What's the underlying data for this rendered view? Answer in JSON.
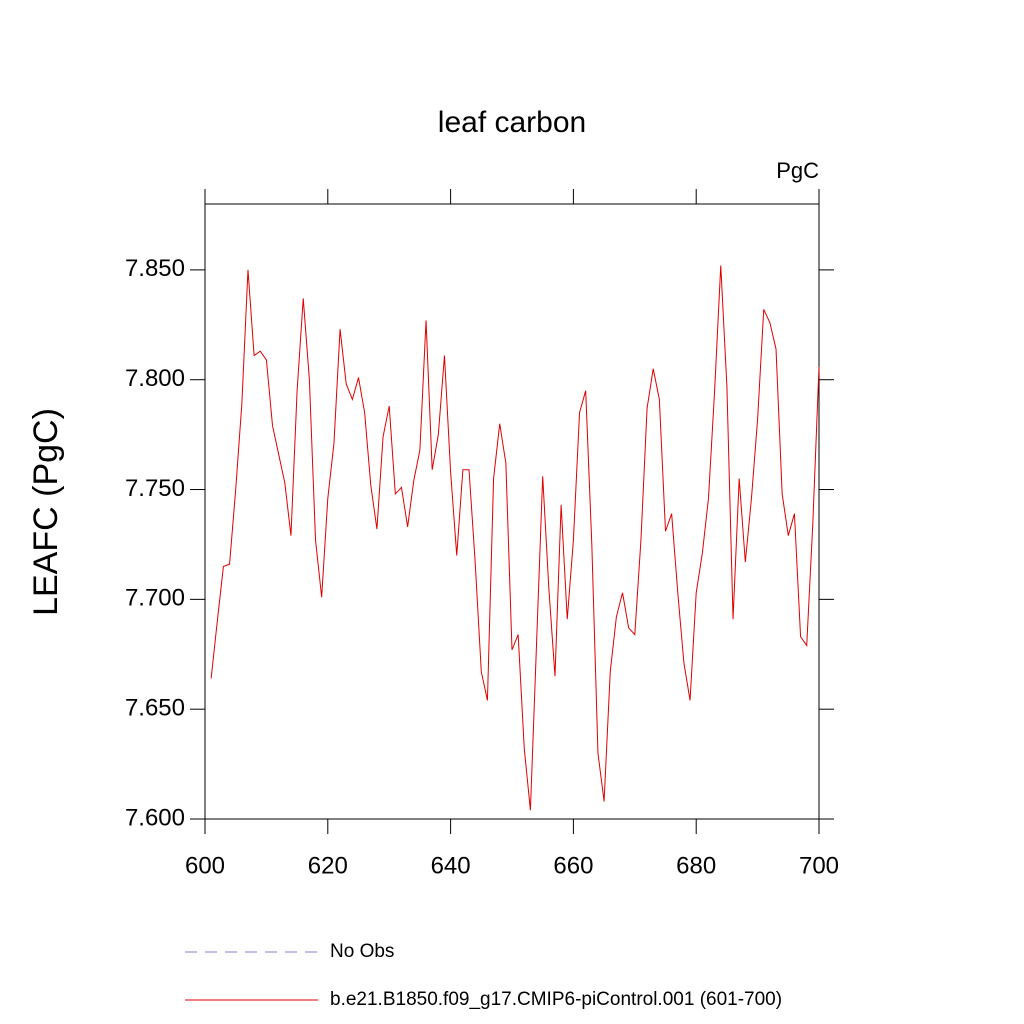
{
  "chart_data": {
    "type": "line",
    "title": "leaf carbon",
    "units_label": "PgC",
    "ylabel": "LEAFC  (PgC)",
    "x": [
      601,
      602,
      603,
      604,
      605,
      606,
      607,
      608,
      609,
      610,
      611,
      612,
      613,
      614,
      615,
      616,
      617,
      618,
      619,
      620,
      621,
      622,
      623,
      624,
      625,
      626,
      627,
      628,
      629,
      630,
      631,
      632,
      633,
      634,
      635,
      636,
      637,
      638,
      639,
      640,
      641,
      642,
      643,
      644,
      645,
      646,
      647,
      648,
      649,
      650,
      651,
      652,
      653,
      654,
      655,
      656,
      657,
      658,
      659,
      660,
      661,
      662,
      663,
      664,
      665,
      666,
      667,
      668,
      669,
      670,
      671,
      672,
      673,
      674,
      675,
      676,
      677,
      678,
      679,
      680,
      681,
      682,
      683,
      684,
      685,
      686,
      687,
      688,
      689,
      690,
      691,
      692,
      693,
      694,
      695,
      696,
      697,
      698,
      699,
      700
    ],
    "series": [
      {
        "name": "No Obs",
        "color": "#8080c8",
        "dashed": true,
        "values": [
          null,
          null,
          null,
          null,
          null,
          null,
          null,
          null,
          null,
          null,
          null,
          null,
          null,
          null,
          null,
          null,
          null,
          null,
          null,
          null,
          null,
          null,
          null,
          null,
          null,
          null,
          null,
          null,
          null,
          null,
          null,
          null,
          null,
          null,
          null,
          null,
          null,
          null,
          null,
          null,
          null,
          null,
          null,
          null,
          null,
          null,
          null,
          null,
          null,
          null,
          null,
          null,
          null,
          null,
          null,
          null,
          null,
          null,
          null,
          null,
          null,
          null,
          null,
          null,
          null,
          null,
          null,
          null,
          null,
          null,
          null,
          null,
          null,
          null,
          null,
          null,
          null,
          null,
          null,
          null,
          null,
          null,
          null,
          null,
          null,
          null,
          null,
          null,
          null,
          null,
          null,
          null,
          null,
          null,
          null,
          null,
          null,
          null,
          null,
          null
        ]
      },
      {
        "name": "b.e21.B1850.f09_g17.CMIP6-piControl.001 (601-700)",
        "color": "#e00000",
        "dashed": false,
        "values": [
          7.664,
          7.69,
          7.715,
          7.716,
          7.75,
          7.789,
          7.85,
          7.811,
          7.813,
          7.809,
          7.779,
          7.766,
          7.753,
          7.729,
          7.795,
          7.837,
          7.8,
          7.727,
          7.701,
          7.746,
          7.771,
          7.823,
          7.798,
          7.791,
          7.801,
          7.785,
          7.752,
          7.732,
          7.774,
          7.788,
          7.748,
          7.751,
          7.733,
          7.754,
          7.768,
          7.827,
          7.759,
          7.775,
          7.811,
          7.758,
          7.72,
          7.759,
          7.759,
          7.717,
          7.667,
          7.654,
          7.755,
          7.78,
          7.762,
          7.677,
          7.684,
          7.632,
          7.604,
          7.68,
          7.756,
          7.705,
          7.665,
          7.743,
          7.691,
          7.727,
          7.785,
          7.795,
          7.725,
          7.63,
          7.608,
          7.667,
          7.692,
          7.703,
          7.687,
          7.684,
          7.727,
          7.787,
          7.805,
          7.791,
          7.731,
          7.739,
          7.703,
          7.671,
          7.654,
          7.703,
          7.721,
          7.746,
          7.795,
          7.852,
          7.797,
          7.691,
          7.755,
          7.717,
          7.746,
          7.782,
          7.832,
          7.826,
          7.814,
          7.748,
          7.729,
          7.739,
          7.683,
          7.679,
          7.735,
          7.806
        ]
      }
    ],
    "xlim": [
      600,
      700
    ],
    "xticks": [
      600,
      620,
      640,
      660,
      680,
      700
    ],
    "ylim": [
      7.6,
      7.88
    ],
    "yticks": [
      {
        "value": 7.6,
        "label": "7.600"
      },
      {
        "value": 7.65,
        "label": "7.650"
      },
      {
        "value": 7.7,
        "label": "7.700"
      },
      {
        "value": 7.75,
        "label": "7.750"
      },
      {
        "value": 7.8,
        "label": "7.800"
      },
      {
        "value": 7.85,
        "label": "7.850"
      }
    ]
  }
}
